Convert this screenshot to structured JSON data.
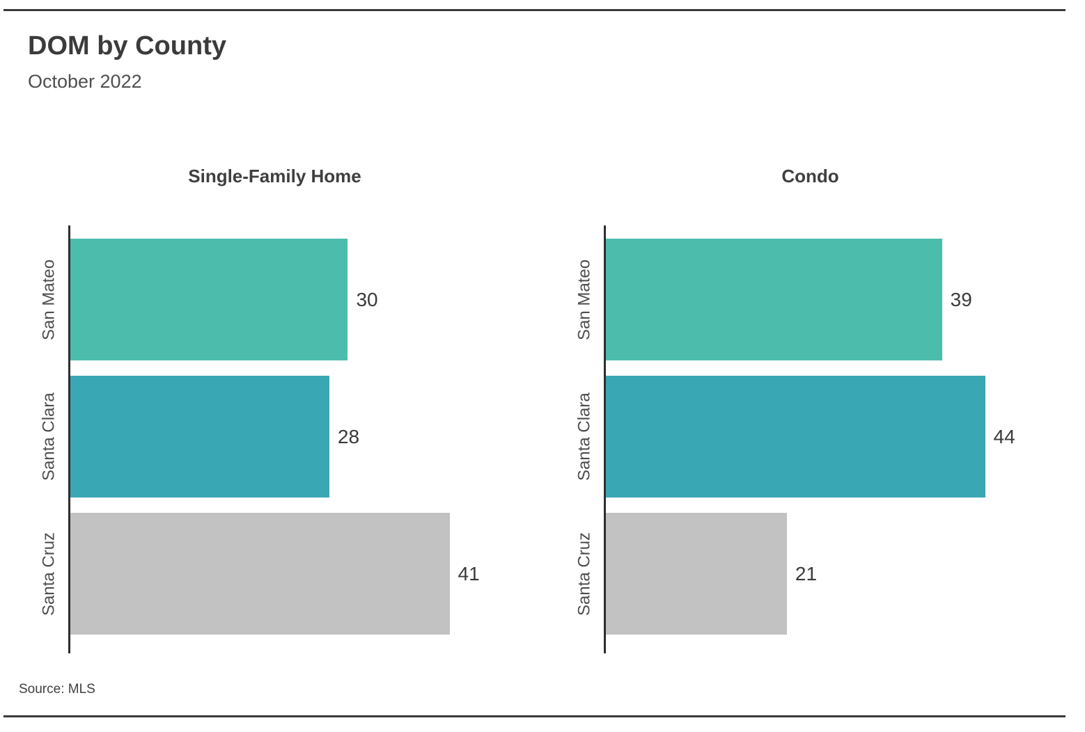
{
  "header": {
    "title": "DOM by County",
    "subtitle": "October 2022"
  },
  "source": {
    "label": "Source: MLS"
  },
  "chart_data": [
    {
      "type": "bar",
      "orientation": "horizontal",
      "title": "Single-Family Home",
      "categories": [
        "San Mateo",
        "Santa Clara",
        "Santa Cruz"
      ],
      "values": [
        30,
        28,
        41
      ],
      "value_labels_shown": true,
      "grid": false,
      "legend": "none"
    },
    {
      "type": "bar",
      "orientation": "horizontal",
      "title": "Condo",
      "categories": [
        "San Mateo",
        "Santa Clara",
        "Santa Cruz"
      ],
      "values": [
        39,
        44,
        21
      ],
      "value_labels_shown": true,
      "grid": false,
      "legend": "none"
    }
  ],
  "chart_colors": {
    "San Mateo": "#4cbcac",
    "Santa Clara": "#3aa7b4",
    "Santa Cruz": "#c2c2c2"
  },
  "axis_color": "#2e2e2e",
  "rule_color": "#3a3a3a"
}
